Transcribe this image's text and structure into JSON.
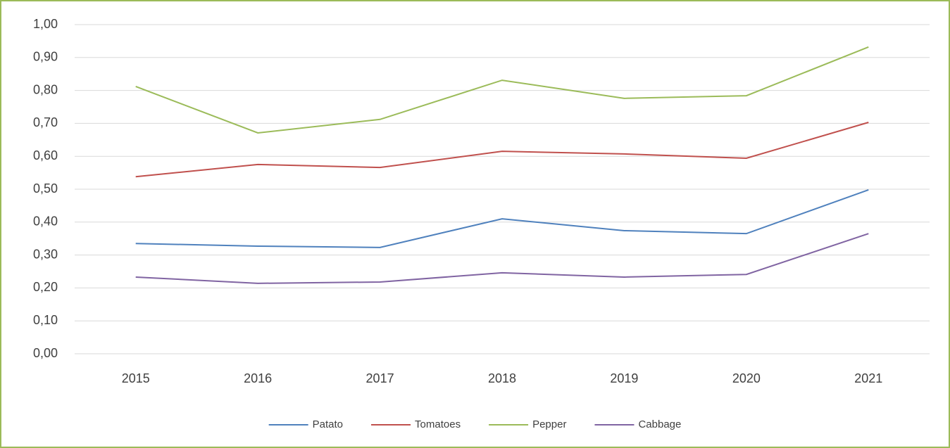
{
  "chart_data": {
    "type": "line",
    "categories": [
      "2015",
      "2016",
      "2017",
      "2018",
      "2019",
      "2020",
      "2021"
    ],
    "series": [
      {
        "name": "Patato",
        "color": "#4f81bd",
        "values": [
          0.335,
          0.327,
          0.323,
          0.41,
          0.374,
          0.365,
          0.498
        ]
      },
      {
        "name": "Tomatoes",
        "color": "#c0504d",
        "values": [
          0.538,
          0.575,
          0.566,
          0.615,
          0.607,
          0.594,
          0.703
        ]
      },
      {
        "name": "Pepper",
        "color": "#9bbb59",
        "values": [
          0.812,
          0.671,
          0.712,
          0.831,
          0.776,
          0.784,
          0.932
        ]
      },
      {
        "name": "Cabbage",
        "color": "#8064a2",
        "values": [
          0.233,
          0.214,
          0.218,
          0.246,
          0.233,
          0.241,
          0.365
        ]
      }
    ],
    "ylim": [
      0,
      1
    ],
    "yticks": [
      {
        "value": 0,
        "label": "0,00"
      },
      {
        "value": 0.1,
        "label": "0,10"
      },
      {
        "value": 0.2,
        "label": "0,20"
      },
      {
        "value": 0.3,
        "label": "0,30"
      },
      {
        "value": 0.4,
        "label": "0,40"
      },
      {
        "value": 0.5,
        "label": "0,50"
      },
      {
        "value": 0.6,
        "label": "0,60"
      },
      {
        "value": 0.7,
        "label": "0,70"
      },
      {
        "value": 0.8,
        "label": "0,80"
      },
      {
        "value": 0.9,
        "label": "0,90"
      },
      {
        "value": 1,
        "label": "1,00"
      }
    ],
    "grid": true,
    "legend": "bottom"
  }
}
